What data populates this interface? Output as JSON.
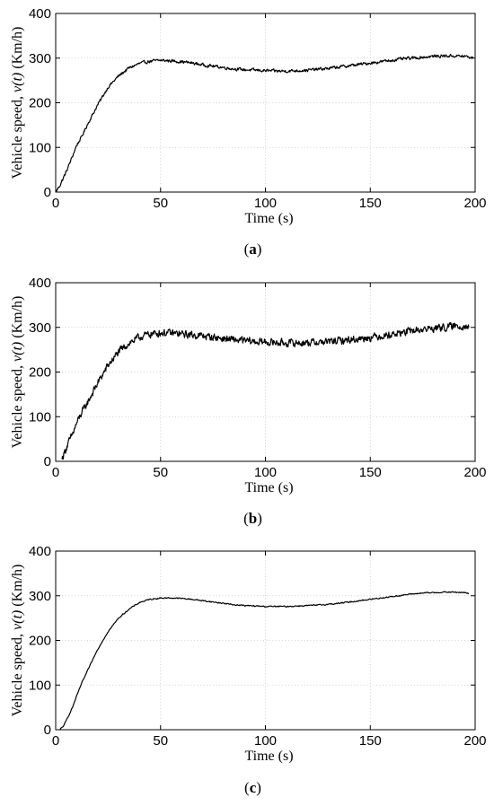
{
  "chart_data": [
    {
      "type": "line",
      "caption": {
        "open": "(",
        "letter": "a",
        "close": ")"
      },
      "xlabel": "Time (s)",
      "ylabel": {
        "prefix": "Vehicle speed, ",
        "var": "v(t)",
        "suffix": " (Km/h)"
      },
      "xlim": [
        0,
        200
      ],
      "ylim": [
        0,
        400
      ],
      "xticks": [
        0,
        50,
        100,
        150,
        200
      ],
      "yticks": [
        0,
        100,
        200,
        300,
        400
      ],
      "grid": true,
      "series": [
        {
          "x": [
            0,
            2,
            5,
            8,
            10,
            12,
            15,
            20,
            25,
            30,
            35,
            40,
            45,
            50,
            55,
            60,
            65,
            70,
            75,
            80,
            85,
            90,
            95,
            100,
            105,
            110,
            115,
            120,
            125,
            130,
            135,
            140,
            145,
            150,
            155,
            160,
            165,
            170,
            175,
            180,
            185,
            190,
            195,
            199
          ],
          "y": [
            0,
            15,
            45,
            80,
            105,
            120,
            150,
            195,
            235,
            260,
            278,
            288,
            293,
            295,
            294,
            292,
            289,
            285,
            282,
            279,
            276,
            274,
            273,
            272,
            271,
            271,
            272,
            273,
            275,
            277,
            280,
            283,
            286,
            289,
            292,
            295,
            298,
            300,
            302,
            304,
            305,
            305,
            304,
            300
          ]
        }
      ]
    },
    {
      "type": "line",
      "caption": {
        "open": "(",
        "letter": "b",
        "close": ")"
      },
      "xlabel": "Time (s)",
      "ylabel": {
        "prefix": "Vehicle speed, ",
        "var": "v(t)",
        "suffix": " (Km/h)"
      },
      "xlim": [
        0,
        200
      ],
      "ylim": [
        0,
        400
      ],
      "xticks": [
        0,
        50,
        100,
        150,
        200
      ],
      "yticks": [
        0,
        100,
        200,
        300,
        400
      ],
      "grid": true,
      "series": [
        {
          "x": [
            3,
            5,
            8,
            10,
            12,
            15,
            20,
            25,
            30,
            35,
            40,
            45,
            50,
            55,
            60,
            65,
            70,
            75,
            80,
            85,
            90,
            95,
            100,
            105,
            110,
            115,
            120,
            125,
            130,
            135,
            140,
            145,
            150,
            155,
            160,
            165,
            170,
            175,
            180,
            185,
            190,
            195,
            197
          ],
          "y": [
            5,
            30,
            60,
            85,
            105,
            130,
            175,
            215,
            245,
            265,
            278,
            285,
            288,
            287,
            285,
            283,
            281,
            278,
            275,
            272,
            270,
            268,
            267,
            266,
            265,
            265,
            266,
            267,
            268,
            270,
            272,
            275,
            278,
            281,
            284,
            288,
            292,
            295,
            298,
            300,
            302,
            304,
            300
          ]
        }
      ]
    },
    {
      "type": "line",
      "caption": {
        "open": "(",
        "letter": "c",
        "close": ")"
      },
      "xlabel": "Time (s)",
      "ylabel": {
        "prefix": "Vehicle speed, ",
        "var": "v(t)",
        "suffix": " (Km/h)"
      },
      "xlim": [
        0,
        200
      ],
      "ylim": [
        0,
        400
      ],
      "xticks": [
        0,
        50,
        100,
        150,
        200
      ],
      "yticks": [
        0,
        100,
        200,
        300,
        400
      ],
      "grid": true,
      "series": [
        {
          "x": [
            2,
            4,
            6,
            8,
            10,
            12,
            15,
            20,
            25,
            30,
            35,
            40,
            45,
            50,
            55,
            60,
            65,
            70,
            75,
            80,
            85,
            90,
            95,
            100,
            105,
            110,
            115,
            120,
            125,
            130,
            135,
            140,
            145,
            150,
            155,
            160,
            165,
            170,
            175,
            180,
            185,
            190,
            195,
            197
          ],
          "y": [
            0,
            10,
            30,
            50,
            75,
            100,
            130,
            180,
            220,
            250,
            270,
            285,
            292,
            295,
            295,
            294,
            292,
            289,
            286,
            283,
            280,
            278,
            277,
            276,
            276,
            276,
            277,
            278,
            279,
            281,
            283,
            286,
            289,
            292,
            295,
            298,
            301,
            304,
            306,
            307,
            308,
            308,
            307,
            305
          ]
        }
      ]
    }
  ]
}
